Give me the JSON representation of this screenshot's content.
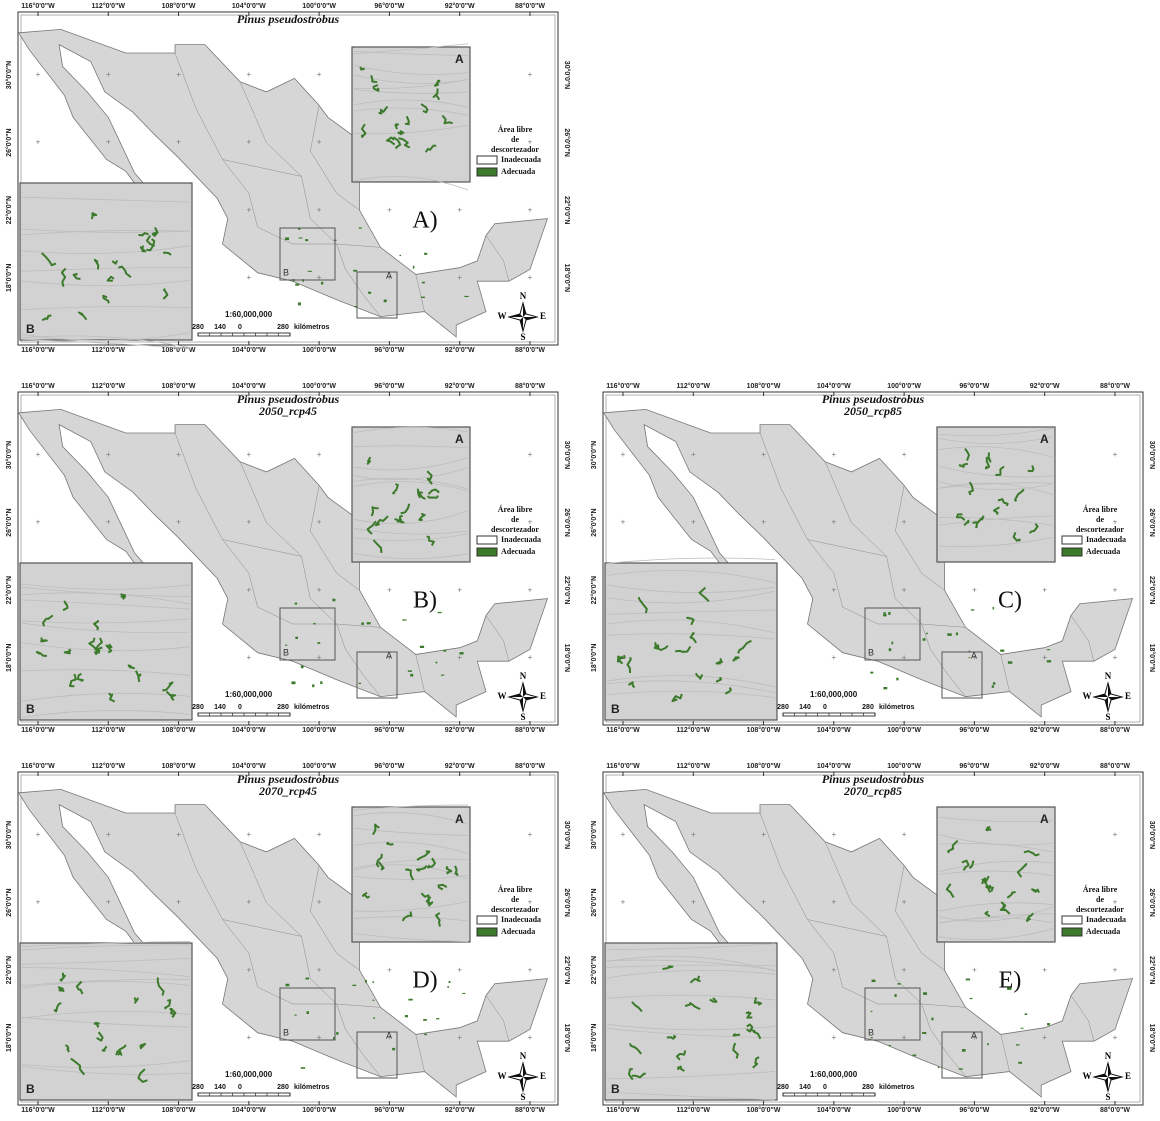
{
  "graticule": {
    "longitudes": [
      "116°0'0\"W",
      "112°0'0\"W",
      "108°0'0\"W",
      "104°0'0\"W",
      "100°0'0\"W",
      "96°0'0\"W",
      "92°0'0\"W",
      "88°0'0\"W"
    ],
    "latitudes": [
      "30°0'0\"N",
      "26°0'0\"N",
      "22°0'0\"N",
      "18°0'0\"N"
    ]
  },
  "insets": [
    "A",
    "B"
  ],
  "legend": {
    "title_lines": [
      "Área libre",
      "de",
      "descortezador"
    ],
    "items": [
      {
        "label": "Inadecuada",
        "color": "#ffffff"
      },
      {
        "label": "Adecuada",
        "color": "#3b7a2a"
      }
    ]
  },
  "scale_bar": {
    "ratio": "1:60,000,000",
    "ticks": [
      "280",
      "140",
      "0",
      "280"
    ],
    "unit": "kilómetros"
  },
  "compass": {
    "n": "N",
    "s": "S",
    "e": "E",
    "w": "W"
  },
  "panels": [
    {
      "title_lines": [
        "Pinus pseudostrobus"
      ],
      "label": "A)"
    },
    {
      "title_lines": [
        "Pinus pseudostrobus",
        "2050_rcp45"
      ],
      "label": "B)"
    },
    {
      "title_lines": [
        "Pinus pseudostrobus",
        "2050_rcp85"
      ],
      "label": "C)"
    },
    {
      "title_lines": [
        "Pinus pseudostrobus",
        "2070_rcp45"
      ],
      "label": "D)"
    },
    {
      "title_lines": [
        "Pinus pseudostrobus",
        "2070_rcp85"
      ],
      "label": "E)"
    }
  ]
}
